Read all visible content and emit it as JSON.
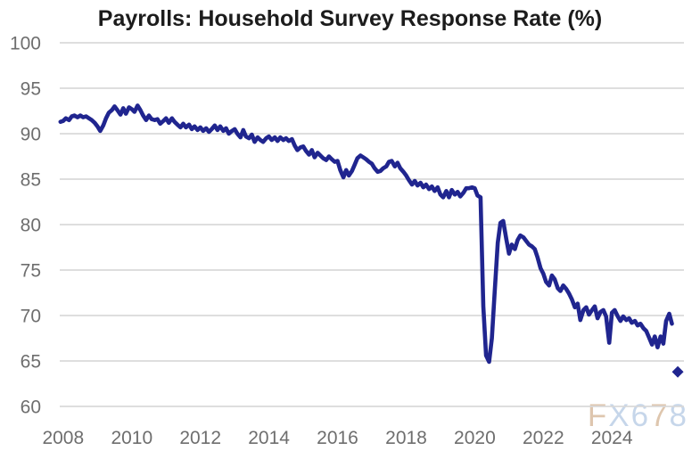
{
  "title": "Payrolls: Household Survey Response Rate (%)",
  "watermark": {
    "text": "FX678",
    "letters": [
      {
        "ch": "F",
        "color": "#d9bda0"
      },
      {
        "ch": "X",
        "color": "#bdd0e7"
      },
      {
        "ch": "6",
        "color": "#bdd0e7"
      },
      {
        "ch": "7",
        "color": "#d9bda0"
      },
      {
        "ch": "8",
        "color": "#bdd0e7"
      }
    ]
  },
  "colors": {
    "line": "#20258f",
    "grid": "#d9d9d9",
    "axis_text": "#6e6e6e",
    "title_text": "#1c1c1c",
    "background": "#ffffff"
  },
  "chart_data": {
    "type": "line",
    "title": "Payrolls: Household Survey Response Rate (%)",
    "xlabel": "",
    "ylabel": "",
    "grid": "horizontal-only",
    "legend": "none",
    "xlim": [
      2007.9,
      2026.1
    ],
    "ylim": [
      60,
      100
    ],
    "y_ticks": [
      100,
      95,
      90,
      85,
      80,
      75,
      70,
      65,
      60
    ],
    "x_ticks": [
      2008,
      2010,
      2012,
      2014,
      2016,
      2018,
      2020,
      2022,
      2024
    ],
    "x_tick_labels": [
      "2008",
      "2010",
      "2012",
      "2014",
      "2016",
      "2018",
      "2020",
      "2022",
      "2024"
    ],
    "series": [
      {
        "name": "Household Survey Response Rate (%)",
        "points": [
          [
            2007.92,
            91.3
          ],
          [
            2008.0,
            91.4
          ],
          [
            2008.08,
            91.7
          ],
          [
            2008.17,
            91.5
          ],
          [
            2008.25,
            91.9
          ],
          [
            2008.33,
            92.0
          ],
          [
            2008.42,
            91.8
          ],
          [
            2008.5,
            92.0
          ],
          [
            2008.58,
            91.8
          ],
          [
            2008.67,
            91.9
          ],
          [
            2008.75,
            91.7
          ],
          [
            2008.83,
            91.5
          ],
          [
            2008.92,
            91.2
          ],
          [
            2009.0,
            90.8
          ],
          [
            2009.08,
            90.3
          ],
          [
            2009.17,
            90.9
          ],
          [
            2009.25,
            91.7
          ],
          [
            2009.33,
            92.3
          ],
          [
            2009.42,
            92.6
          ],
          [
            2009.5,
            93.0
          ],
          [
            2009.58,
            92.6
          ],
          [
            2009.67,
            92.1
          ],
          [
            2009.75,
            92.8
          ],
          [
            2009.83,
            92.2
          ],
          [
            2009.92,
            92.9
          ],
          [
            2010.0,
            92.7
          ],
          [
            2010.08,
            92.4
          ],
          [
            2010.17,
            93.1
          ],
          [
            2010.25,
            92.6
          ],
          [
            2010.33,
            92.0
          ],
          [
            2010.42,
            91.5
          ],
          [
            2010.5,
            92.0
          ],
          [
            2010.58,
            91.6
          ],
          [
            2010.67,
            91.5
          ],
          [
            2010.75,
            91.6
          ],
          [
            2010.83,
            91.1
          ],
          [
            2010.92,
            91.4
          ],
          [
            2011.0,
            91.7
          ],
          [
            2011.08,
            91.2
          ],
          [
            2011.17,
            91.7
          ],
          [
            2011.25,
            91.3
          ],
          [
            2011.33,
            91.0
          ],
          [
            2011.42,
            90.7
          ],
          [
            2011.5,
            91.1
          ],
          [
            2011.58,
            90.7
          ],
          [
            2011.67,
            91.0
          ],
          [
            2011.75,
            90.5
          ],
          [
            2011.83,
            90.8
          ],
          [
            2011.92,
            90.4
          ],
          [
            2012.0,
            90.7
          ],
          [
            2012.08,
            90.3
          ],
          [
            2012.17,
            90.6
          ],
          [
            2012.25,
            90.2
          ],
          [
            2012.33,
            90.5
          ],
          [
            2012.42,
            90.9
          ],
          [
            2012.5,
            90.4
          ],
          [
            2012.58,
            90.8
          ],
          [
            2012.67,
            90.3
          ],
          [
            2012.75,
            90.6
          ],
          [
            2012.83,
            90.0
          ],
          [
            2012.92,
            90.3
          ],
          [
            2013.0,
            90.5
          ],
          [
            2013.08,
            90.0
          ],
          [
            2013.17,
            89.6
          ],
          [
            2013.25,
            90.4
          ],
          [
            2013.33,
            89.7
          ],
          [
            2013.42,
            89.5
          ],
          [
            2013.5,
            89.9
          ],
          [
            2013.58,
            89.1
          ],
          [
            2013.67,
            89.6
          ],
          [
            2013.75,
            89.3
          ],
          [
            2013.83,
            89.1
          ],
          [
            2013.92,
            89.5
          ],
          [
            2014.0,
            89.7
          ],
          [
            2014.08,
            89.3
          ],
          [
            2014.17,
            89.6
          ],
          [
            2014.25,
            89.2
          ],
          [
            2014.33,
            89.6
          ],
          [
            2014.42,
            89.3
          ],
          [
            2014.5,
            89.5
          ],
          [
            2014.58,
            89.2
          ],
          [
            2014.67,
            89.4
          ],
          [
            2014.75,
            88.7
          ],
          [
            2014.83,
            88.2
          ],
          [
            2014.92,
            88.5
          ],
          [
            2015.0,
            88.6
          ],
          [
            2015.08,
            88.1
          ],
          [
            2015.17,
            87.7
          ],
          [
            2015.25,
            88.2
          ],
          [
            2015.33,
            87.4
          ],
          [
            2015.42,
            87.9
          ],
          [
            2015.5,
            87.6
          ],
          [
            2015.58,
            87.3
          ],
          [
            2015.67,
            87.1
          ],
          [
            2015.75,
            87.5
          ],
          [
            2015.83,
            87.2
          ],
          [
            2015.92,
            86.9
          ],
          [
            2016.0,
            87.0
          ],
          [
            2016.08,
            86.0
          ],
          [
            2016.17,
            85.2
          ],
          [
            2016.25,
            86.0
          ],
          [
            2016.33,
            85.4
          ],
          [
            2016.42,
            85.9
          ],
          [
            2016.5,
            86.6
          ],
          [
            2016.58,
            87.3
          ],
          [
            2016.67,
            87.6
          ],
          [
            2016.75,
            87.4
          ],
          [
            2016.83,
            87.2
          ],
          [
            2016.92,
            86.9
          ],
          [
            2017.0,
            86.7
          ],
          [
            2017.08,
            86.2
          ],
          [
            2017.17,
            85.8
          ],
          [
            2017.25,
            85.9
          ],
          [
            2017.33,
            86.2
          ],
          [
            2017.42,
            86.4
          ],
          [
            2017.5,
            86.9
          ],
          [
            2017.58,
            87.0
          ],
          [
            2017.67,
            86.4
          ],
          [
            2017.75,
            86.8
          ],
          [
            2017.83,
            86.2
          ],
          [
            2017.92,
            85.8
          ],
          [
            2018.0,
            85.4
          ],
          [
            2018.08,
            84.9
          ],
          [
            2018.17,
            84.4
          ],
          [
            2018.25,
            84.8
          ],
          [
            2018.33,
            84.3
          ],
          [
            2018.42,
            84.6
          ],
          [
            2018.5,
            84.1
          ],
          [
            2018.58,
            84.4
          ],
          [
            2018.67,
            83.9
          ],
          [
            2018.75,
            84.2
          ],
          [
            2018.83,
            83.7
          ],
          [
            2018.92,
            84.1
          ],
          [
            2019.0,
            83.3
          ],
          [
            2019.08,
            83.0
          ],
          [
            2019.17,
            83.7
          ],
          [
            2019.25,
            83.0
          ],
          [
            2019.33,
            83.8
          ],
          [
            2019.42,
            83.3
          ],
          [
            2019.5,
            83.6
          ],
          [
            2019.58,
            83.1
          ],
          [
            2019.67,
            83.5
          ],
          [
            2019.75,
            84.0
          ],
          [
            2019.83,
            84.0
          ],
          [
            2019.92,
            84.1
          ],
          [
            2020.0,
            84.0
          ],
          [
            2020.08,
            83.2
          ],
          [
            2020.17,
            83.0
          ],
          [
            2020.25,
            71.0
          ],
          [
            2020.33,
            65.6
          ],
          [
            2020.42,
            64.9
          ],
          [
            2020.5,
            67.5
          ],
          [
            2020.58,
            72.5
          ],
          [
            2020.67,
            78.0
          ],
          [
            2020.75,
            80.2
          ],
          [
            2020.83,
            80.4
          ],
          [
            2020.92,
            78.4
          ],
          [
            2021.0,
            76.8
          ],
          [
            2021.08,
            77.8
          ],
          [
            2021.17,
            77.3
          ],
          [
            2021.25,
            78.3
          ],
          [
            2021.33,
            78.8
          ],
          [
            2021.42,
            78.6
          ],
          [
            2021.5,
            78.2
          ],
          [
            2021.58,
            77.8
          ],
          [
            2021.67,
            77.6
          ],
          [
            2021.75,
            77.3
          ],
          [
            2021.83,
            76.4
          ],
          [
            2021.92,
            75.2
          ],
          [
            2022.0,
            74.6
          ],
          [
            2022.08,
            73.7
          ],
          [
            2022.17,
            73.3
          ],
          [
            2022.25,
            74.4
          ],
          [
            2022.33,
            74.0
          ],
          [
            2022.42,
            73.0
          ],
          [
            2022.5,
            72.7
          ],
          [
            2022.58,
            73.3
          ],
          [
            2022.67,
            72.9
          ],
          [
            2022.75,
            72.4
          ],
          [
            2022.83,
            71.8
          ],
          [
            2022.92,
            70.9
          ],
          [
            2023.0,
            71.3
          ],
          [
            2023.08,
            69.5
          ],
          [
            2023.17,
            70.6
          ],
          [
            2023.25,
            70.9
          ],
          [
            2023.33,
            70.1
          ],
          [
            2023.42,
            70.6
          ],
          [
            2023.5,
            71.0
          ],
          [
            2023.58,
            69.7
          ],
          [
            2023.67,
            70.4
          ],
          [
            2023.75,
            70.6
          ],
          [
            2023.83,
            69.9
          ],
          [
            2023.92,
            67.0
          ],
          [
            2024.0,
            70.3
          ],
          [
            2024.08,
            70.6
          ],
          [
            2024.17,
            69.9
          ],
          [
            2024.25,
            69.4
          ],
          [
            2024.33,
            69.9
          ],
          [
            2024.42,
            69.5
          ],
          [
            2024.5,
            69.7
          ],
          [
            2024.58,
            69.2
          ],
          [
            2024.67,
            69.4
          ],
          [
            2024.75,
            68.9
          ],
          [
            2024.83,
            69.1
          ],
          [
            2024.92,
            68.6
          ],
          [
            2025.0,
            68.3
          ],
          [
            2025.08,
            67.6
          ],
          [
            2025.17,
            66.8
          ],
          [
            2025.25,
            67.7
          ],
          [
            2025.33,
            66.5
          ],
          [
            2025.42,
            67.7
          ],
          [
            2025.5,
            66.9
          ],
          [
            2025.58,
            69.4
          ],
          [
            2025.67,
            70.2
          ],
          [
            2025.75,
            69.1
          ]
        ]
      }
    ],
    "latest_point": {
      "x": 2025.92,
      "y": 64.0,
      "marker": "diamond"
    }
  }
}
